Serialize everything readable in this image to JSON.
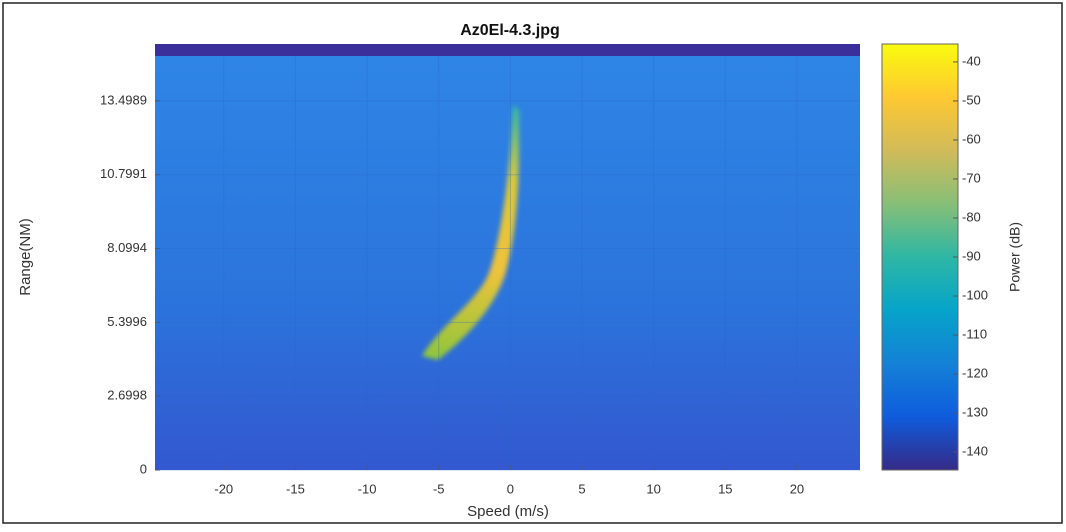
{
  "chart_data": {
    "type": "heatmap",
    "title": "Az0El-4.3.jpg",
    "xlabel": "Speed (m/s)",
    "ylabel": "Range(NM)",
    "xlim": [
      -24.8,
      24.4
    ],
    "xticks": [
      -20,
      -15,
      -10,
      -5,
      0,
      5,
      10,
      15,
      20
    ],
    "ylim": [
      0,
      15.58
    ],
    "yticks": [
      0,
      2.6998,
      5.3996,
      8.0994,
      10.7991,
      13.4989
    ],
    "colorbar": {
      "label": "Power (dB)",
      "colormap": "parula",
      "lim": [
        -144.6,
        -35.4
      ],
      "ticks": [
        -40,
        -50,
        -60,
        -70,
        -80,
        -90,
        -100,
        -110,
        -120,
        -130,
        -140
      ]
    }
  }
}
